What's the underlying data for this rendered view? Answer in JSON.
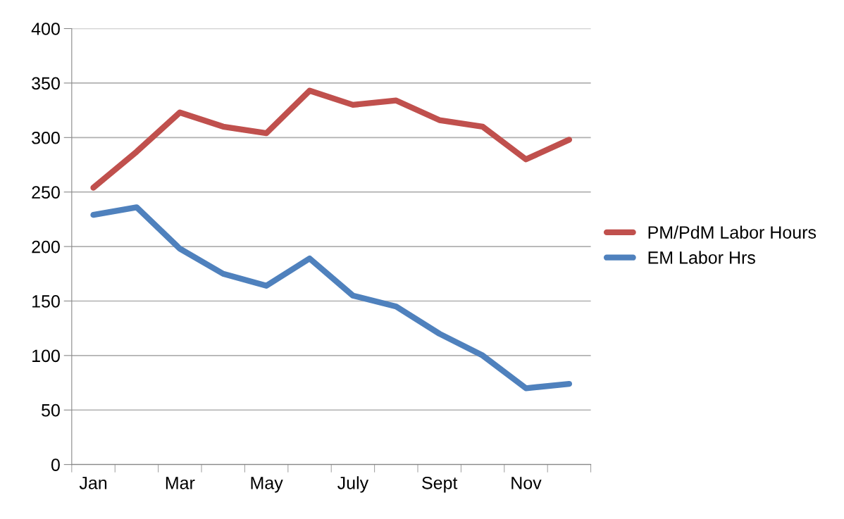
{
  "chart_data": {
    "type": "line",
    "categories": [
      "Jan",
      null,
      "Mar",
      null,
      "May",
      null,
      "July",
      null,
      "Sept",
      null,
      "Nov",
      null
    ],
    "series": [
      {
        "name": "PM/PdM Labor Hours",
        "color": "#c0504d",
        "values": [
          254,
          287,
          323,
          310,
          304,
          343,
          330,
          334,
          316,
          310,
          280,
          298
        ]
      },
      {
        "name": "EM Labor Hrs",
        "color": "#4f81bd",
        "values": [
          229,
          236,
          198,
          175,
          164,
          189,
          155,
          145,
          120,
          100,
          70,
          74
        ]
      }
    ],
    "ylim": [
      0,
      400
    ],
    "yticks": [
      0,
      50,
      100,
      150,
      200,
      250,
      300,
      350,
      400
    ],
    "grid": "y",
    "legend": "right",
    "marker": "none",
    "line_style": "solid"
  }
}
